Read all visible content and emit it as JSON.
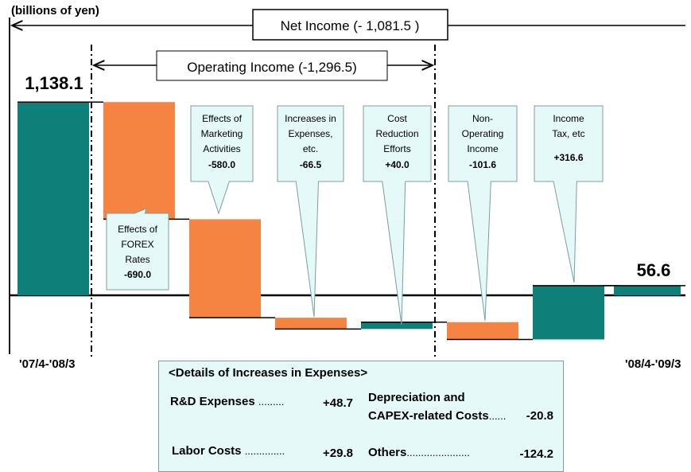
{
  "chart_data": {
    "type": "waterfall",
    "unit_label": "(billions of yen)",
    "ylim": [
      -180,
      1300
    ],
    "start": {
      "label": "'07/4-'08/3",
      "value": 1138.1,
      "display": "1,138.1"
    },
    "end": {
      "label": "'08/4-'09/3",
      "value": 56.6,
      "display": "56.6"
    },
    "steps": [
      {
        "lines": [
          "Effects of",
          "FOREX",
          "Rates"
        ],
        "value": -690.0,
        "display": "-690.0",
        "color": "#f58442"
      },
      {
        "lines": [
          "Effects of",
          "Marketing",
          "Activities"
        ],
        "value": -580.0,
        "display": "-580.0",
        "color": "#f58442"
      },
      {
        "lines": [
          "Increases in",
          "Expenses,",
          "etc."
        ],
        "value": -66.5,
        "display": "-66.5",
        "color": "#f58442"
      },
      {
        "lines": [
          "Cost",
          "Reduction",
          "Efforts"
        ],
        "value": 40.0,
        "display": "+40.0",
        "color": "#0e8079"
      },
      {
        "lines": [
          "Non-",
          "Operating",
          "Income"
        ],
        "value": -101.6,
        "display": "-101.6",
        "color": "#f58442"
      },
      {
        "lines": [
          "Income",
          "Tax, etc"
        ],
        "value": 316.6,
        "display": "+316.6",
        "color": "#0e8079"
      }
    ],
    "net_income_label": "Net Income (- 1,081.5 )",
    "operating_income_label": "Operating Income (-1,296.5)",
    "colors": {
      "teal": "#0e8079",
      "orange": "#f58442",
      "callout_bg": "#e6f9f9",
      "callout_border": "#7a9e9e"
    }
  },
  "details": {
    "heading": "<Details of Increases in Expenses>",
    "items": [
      {
        "label": "R&D Expenses",
        "dots": ".........",
        "value": "+48.7"
      },
      {
        "label": "Labor Costs",
        "dots": "..............",
        "value": "+29.8"
      },
      {
        "label": "Depreciation and",
        "label2": "CAPEX-related Costs",
        "dots": "......",
        "value": "-20.8"
      },
      {
        "label": "Others",
        "dots": "......................",
        "value": "-124.2"
      }
    ]
  }
}
